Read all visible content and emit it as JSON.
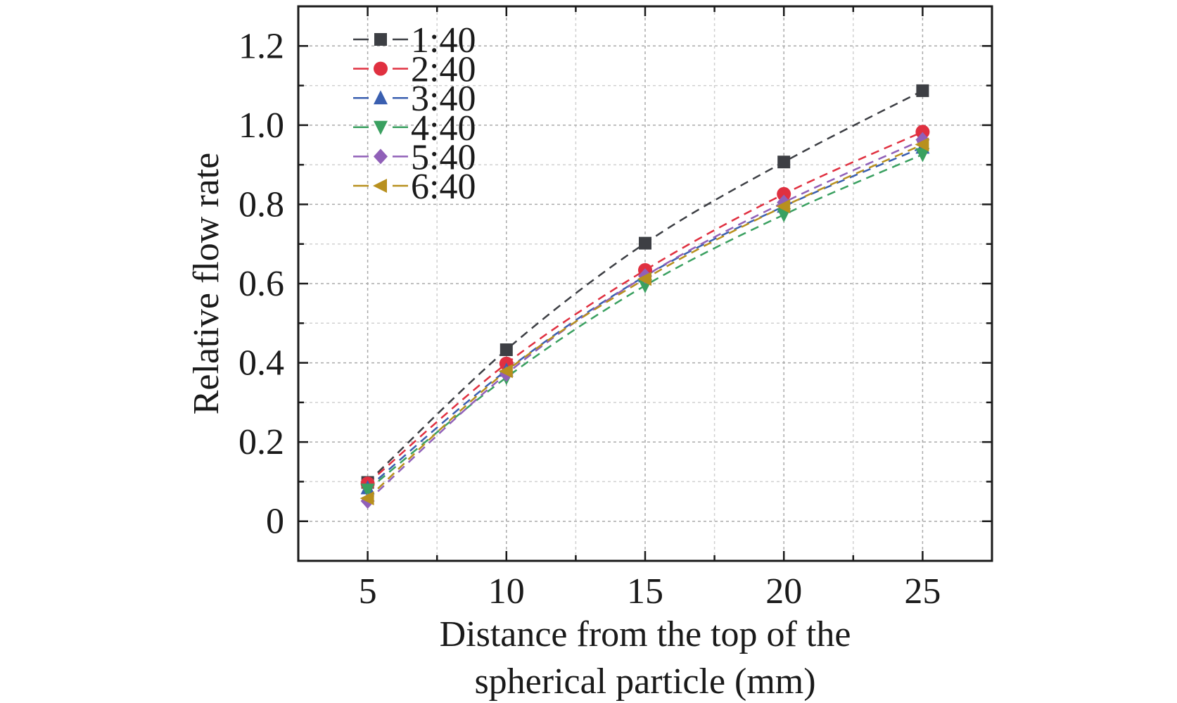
{
  "chart_data": {
    "type": "line",
    "xlabel_lines": [
      "Distance from the top of the",
      "spherical particle (mm)"
    ],
    "ylabel": "Relative flow rate",
    "xlim": [
      2.5,
      27.5
    ],
    "ylim": [
      -0.1,
      1.3
    ],
    "x_ticks": [
      5,
      10,
      15,
      20,
      25
    ],
    "x_tick_labels": [
      "5",
      "10",
      "15",
      "20",
      "25"
    ],
    "y_ticks": [
      0,
      0.2,
      0.4,
      0.6,
      0.8,
      1.0,
      1.2
    ],
    "y_tick_labels": [
      "0",
      "0.2",
      "0.4",
      "0.6",
      "0.8",
      "1.0",
      "1.2"
    ],
    "grid": true,
    "legend_position": "top-left",
    "x": [
      5,
      10,
      15,
      20,
      25
    ],
    "series": [
      {
        "name": "1:40",
        "color": "#3d3f44",
        "marker": "square",
        "values": [
          0.098,
          0.433,
          0.702,
          0.907,
          1.087
        ]
      },
      {
        "name": "2:40",
        "color": "#e03040",
        "marker": "circle",
        "values": [
          0.095,
          0.398,
          0.634,
          0.826,
          0.983
        ]
      },
      {
        "name": "3:40",
        "color": "#3a5fb0",
        "marker": "triangle-up",
        "values": [
          0.084,
          0.381,
          0.619,
          0.795,
          0.944
        ]
      },
      {
        "name": "4:40",
        "color": "#3aa060",
        "marker": "triangle-down",
        "values": [
          0.079,
          0.363,
          0.595,
          0.774,
          0.926
        ]
      },
      {
        "name": "5:40",
        "color": "#9060b8",
        "marker": "diamond",
        "values": [
          0.051,
          0.372,
          0.619,
          0.805,
          0.963
        ]
      },
      {
        "name": "6:40",
        "color": "#b8901e",
        "marker": "triangle-left",
        "values": [
          0.058,
          0.379,
          0.612,
          0.795,
          0.951
        ]
      }
    ]
  }
}
